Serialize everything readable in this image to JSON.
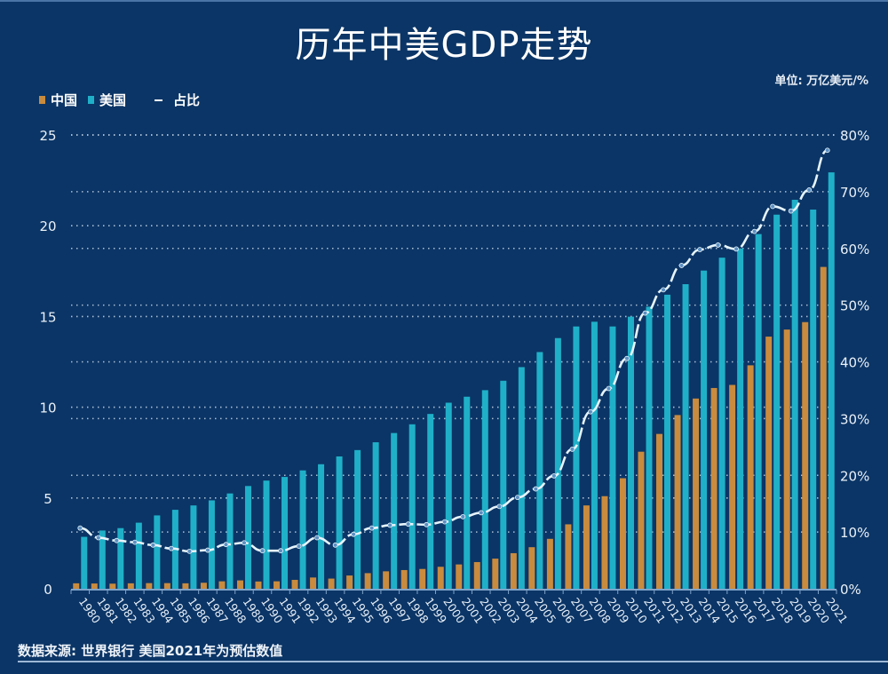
{
  "header": {
    "title": "历年中美GDP走势",
    "unit": "单位: 万亿美元/%"
  },
  "legend": {
    "china": "中国",
    "usa": "美国",
    "ratio": "占比"
  },
  "colors": {
    "background": "#0b3566",
    "china": "#c98b3e",
    "usa": "#1fb0c8",
    "ratio_line": "#e6f4fb",
    "grid": "#c8d8ea"
  },
  "footer": {
    "source": "数据来源: 世界银行  美国2021年为预估数值"
  },
  "chart_data": {
    "type": "bar",
    "title": "历年中美GDP走势",
    "xlabel": "",
    "ylabel": "万亿美元",
    "y2label": "%",
    "ylim": [
      0,
      25
    ],
    "y2lim": [
      0,
      80
    ],
    "yticks": [
      "0",
      "5",
      "10",
      "15",
      "20",
      "25"
    ],
    "y2ticks": [
      "0%",
      "10%",
      "20%",
      "30%",
      "40%",
      "50%",
      "60%",
      "70%",
      "80%"
    ],
    "grid": true,
    "legend_position": "top-left",
    "categories": [
      "1980",
      "1981",
      "1982",
      "1983",
      "1984",
      "1985",
      "1986",
      "1987",
      "1988",
      "1989",
      "1990",
      "1991",
      "1992",
      "1993",
      "1994",
      "1995",
      "1996",
      "1997",
      "1998",
      "1999",
      "2000",
      "2001",
      "2002",
      "2003",
      "2004",
      "2005",
      "2006",
      "2007",
      "2008",
      "2009",
      "2010",
      "2011",
      "2012",
      "2013",
      "2014",
      "2015",
      "2016",
      "2017",
      "2018",
      "2019",
      "2020",
      "2021"
    ],
    "series": [
      {
        "name": "中国",
        "type": "bar",
        "axis": "left",
        "values": [
          0.3,
          0.29,
          0.28,
          0.3,
          0.31,
          0.31,
          0.3,
          0.33,
          0.41,
          0.46,
          0.4,
          0.41,
          0.49,
          0.62,
          0.56,
          0.73,
          0.86,
          0.96,
          1.03,
          1.09,
          1.21,
          1.34,
          1.47,
          1.66,
          1.96,
          2.29,
          2.75,
          3.55,
          4.59,
          5.1,
          6.09,
          7.55,
          8.53,
          9.57,
          10.48,
          11.06,
          11.23,
          12.31,
          13.89,
          14.28,
          14.69,
          17.73
        ]
      },
      {
        "name": "美国",
        "type": "bar",
        "axis": "left",
        "values": [
          2.86,
          3.21,
          3.34,
          3.64,
          4.04,
          4.35,
          4.59,
          4.87,
          5.25,
          5.66,
          5.96,
          6.16,
          6.52,
          6.86,
          7.29,
          7.64,
          8.07,
          8.58,
          9.06,
          9.63,
          10.25,
          10.58,
          10.94,
          11.46,
          12.21,
          13.04,
          13.81,
          14.45,
          14.71,
          14.45,
          14.99,
          15.54,
          16.2,
          16.78,
          17.53,
          18.24,
          18.75,
          19.54,
          20.61,
          21.43,
          20.89,
          22.94
        ]
      },
      {
        "name": "占比",
        "type": "line",
        "axis": "right",
        "values": [
          10.7,
          9.0,
          8.5,
          8.2,
          7.7,
          7.1,
          6.6,
          6.8,
          7.8,
          8.1,
          6.7,
          6.7,
          7.5,
          9.0,
          7.7,
          9.6,
          10.7,
          11.2,
          11.4,
          11.3,
          11.8,
          12.7,
          13.4,
          14.5,
          16.1,
          17.6,
          19.9,
          24.6,
          31.2,
          35.3,
          40.6,
          48.6,
          52.7,
          57.0,
          59.8,
          60.6,
          59.9,
          63.0,
          67.4,
          66.6,
          70.3,
          77.3
        ]
      }
    ]
  }
}
